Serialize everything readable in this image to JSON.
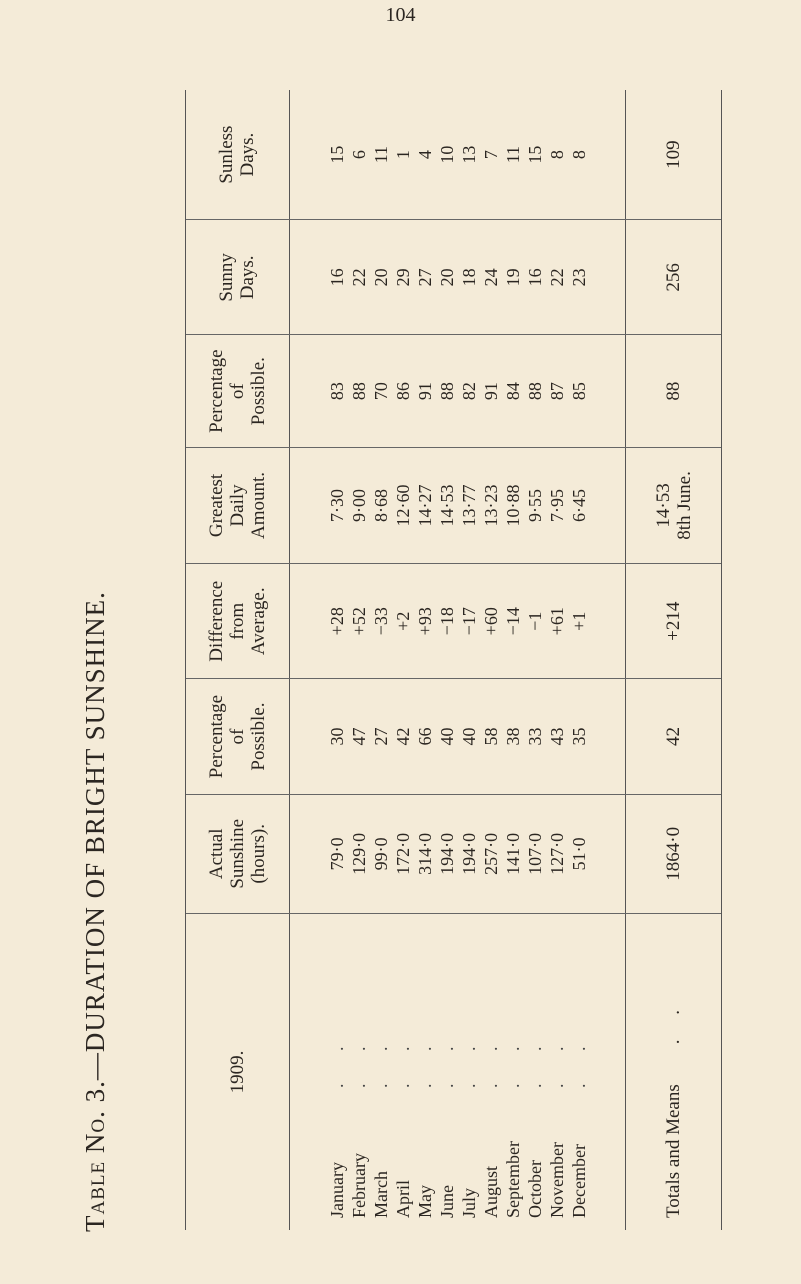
{
  "page_number": "104",
  "title": {
    "prefix": "Table No. 3.",
    "main": "—DURATION OF BRIGHT SUNSHINE."
  },
  "year": "1909.",
  "months": [
    "January",
    "February",
    "March",
    "April",
    "May",
    "June",
    "July",
    "August",
    "September",
    "October",
    "November",
    "December"
  ],
  "leader": ". .",
  "totals_label": "Totals and Means",
  "columns": [
    {
      "key": "actual",
      "header": [
        "Actual",
        "Sunshine",
        "(hours)."
      ],
      "values": [
        "79·0",
        "129·0",
        "99·0",
        "172·0",
        "314·0",
        "194·0",
        "194·0",
        "257·0",
        "141·0",
        "107·0",
        "127·0",
        "51·0"
      ],
      "total": [
        "1864·0"
      ]
    },
    {
      "key": "pct1",
      "header": [
        "Percentage",
        "of",
        "Possible."
      ],
      "values": [
        "30",
        "47",
        "27",
        "42",
        "66",
        "40",
        "40",
        "58",
        "38",
        "33",
        "43",
        "35"
      ],
      "total": [
        "42"
      ]
    },
    {
      "key": "diff",
      "header": [
        "Difference",
        "from",
        "Average."
      ],
      "values": [
        "+28",
        "+52",
        "−33",
        "+2",
        "+93",
        "−18",
        "−17",
        "+60",
        "−14",
        "−1",
        "+61",
        "+1"
      ],
      "total": [
        "+214"
      ]
    },
    {
      "key": "greatest",
      "header": [
        "Greatest",
        "Daily",
        "Amount."
      ],
      "values": [
        "7·30",
        "9·00",
        "8·68",
        "12·60",
        "14·27",
        "14·53",
        "13·77",
        "13·23",
        "10·88",
        "9·55",
        "7·95",
        "6·45"
      ],
      "total": [
        "14·53",
        "8th June."
      ]
    },
    {
      "key": "pct2",
      "header": [
        "Percentage",
        "of",
        "Possible."
      ],
      "values": [
        "83",
        "88",
        "70",
        "86",
        "91",
        "88",
        "82",
        "91",
        "84",
        "88",
        "87",
        "85"
      ],
      "total": [
        "88"
      ]
    },
    {
      "key": "sunny",
      "header": [
        "Sunny",
        "Days."
      ],
      "values": [
        "16",
        "22",
        "20",
        "29",
        "27",
        "20",
        "18",
        "24",
        "19",
        "16",
        "22",
        "23"
      ],
      "total": [
        "256"
      ]
    },
    {
      "key": "sunless",
      "header": [
        "Sunless",
        "Days."
      ],
      "values": [
        "15",
        "6",
        "11",
        "1",
        "4",
        "10",
        "13",
        "7",
        "11",
        "15",
        "8",
        "8"
      ],
      "total": [
        "109"
      ]
    }
  ]
}
